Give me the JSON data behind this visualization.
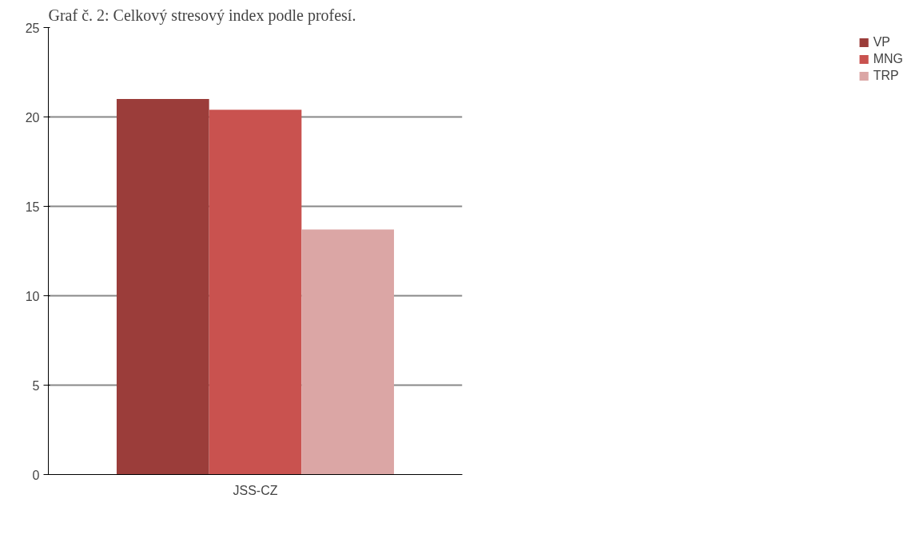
{
  "chart_data": {
    "type": "bar",
    "title": "Graf č. 2: Celkový stresový index podle profesí.",
    "categories": [
      "JSS-CZ"
    ],
    "series": [
      {
        "name": "VP",
        "color": "#9b3d3a",
        "values": [
          21.0
        ]
      },
      {
        "name": "MNG",
        "color": "#c9524f",
        "values": [
          20.4
        ]
      },
      {
        "name": "TRP",
        "color": "#dba6a5",
        "values": [
          13.7
        ]
      }
    ],
    "ylim": [
      0,
      25
    ],
    "yticks": [
      0,
      5,
      10,
      15,
      20,
      25
    ],
    "grid": "y",
    "legend": "right"
  }
}
